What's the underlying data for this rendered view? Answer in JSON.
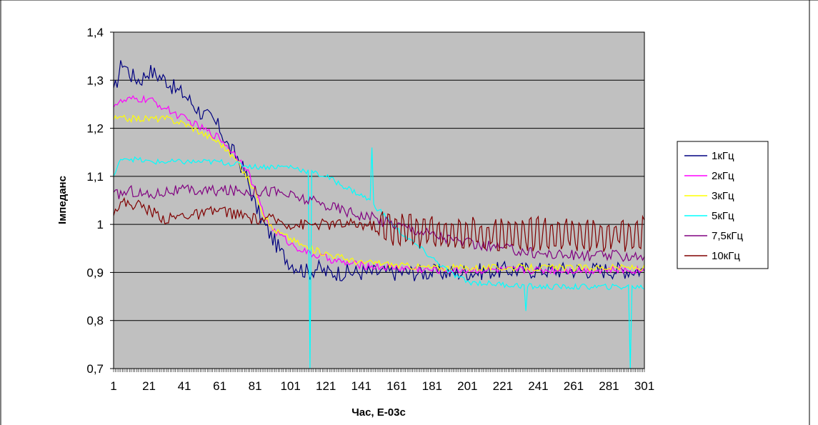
{
  "chart_data": {
    "type": "line",
    "xlabel": "Час, Е-03с",
    "ylabel": "Імпеданс",
    "xlim": [
      1,
      301
    ],
    "ylim": [
      0.7,
      1.4
    ],
    "y_ticks": [
      "0,7",
      "0,8",
      "0,9",
      "1",
      "1,1",
      "1,2",
      "1,3",
      "1,4"
    ],
    "x_ticks": [
      "1",
      "21",
      "41",
      "61",
      "81",
      "101",
      "121",
      "141",
      "161",
      "181",
      "201",
      "221",
      "241",
      "261",
      "281",
      "301"
    ],
    "grid": "horizontal",
    "plot_background": "#c0c0c0",
    "legend_position": "right",
    "series": [
      {
        "name": "1кГц",
        "color": "#000080",
        "points": [
          [
            1,
            1.27
          ],
          [
            3,
            1.3
          ],
          [
            6,
            1.34
          ],
          [
            11,
            1.31
          ],
          [
            16,
            1.3
          ],
          [
            21,
            1.32
          ],
          [
            26,
            1.31
          ],
          [
            31,
            1.3
          ],
          [
            36,
            1.28
          ],
          [
            41,
            1.27
          ],
          [
            46,
            1.25
          ],
          [
            51,
            1.23
          ],
          [
            56,
            1.22
          ],
          [
            61,
            1.2
          ],
          [
            66,
            1.16
          ],
          [
            71,
            1.14
          ],
          [
            76,
            1.1
          ],
          [
            81,
            1.04
          ],
          [
            86,
            1.0
          ],
          [
            91,
            0.97
          ],
          [
            96,
            0.94
          ],
          [
            101,
            0.92
          ],
          [
            106,
            0.91
          ],
          [
            111,
            0.9
          ],
          [
            116,
            0.91
          ],
          [
            121,
            0.9
          ],
          [
            131,
            0.9
          ],
          [
            141,
            0.9
          ],
          [
            151,
            0.9
          ],
          [
            161,
            0.9
          ],
          [
            171,
            0.9
          ],
          [
            181,
            0.9
          ],
          [
            191,
            0.9
          ],
          [
            201,
            0.9
          ],
          [
            221,
            0.905
          ],
          [
            241,
            0.905
          ],
          [
            261,
            0.905
          ],
          [
            281,
            0.905
          ],
          [
            301,
            0.905
          ]
        ],
        "noise": 0.018
      },
      {
        "name": "2кГц",
        "color": "#ff00ff",
        "points": [
          [
            1,
            1.25
          ],
          [
            11,
            1.26
          ],
          [
            21,
            1.26
          ],
          [
            31,
            1.24
          ],
          [
            41,
            1.22
          ],
          [
            51,
            1.2
          ],
          [
            61,
            1.18
          ],
          [
            71,
            1.14
          ],
          [
            76,
            1.12
          ],
          [
            81,
            1.07
          ],
          [
            86,
            1.02
          ],
          [
            91,
            0.99
          ],
          [
            101,
            0.96
          ],
          [
            111,
            0.94
          ],
          [
            121,
            0.93
          ],
          [
            131,
            0.92
          ],
          [
            141,
            0.915
          ],
          [
            151,
            0.912
          ],
          [
            161,
            0.91
          ],
          [
            181,
            0.905
          ],
          [
            201,
            0.905
          ],
          [
            221,
            0.905
          ],
          [
            241,
            0.905
          ],
          [
            261,
            0.905
          ],
          [
            281,
            0.905
          ],
          [
            301,
            0.905
          ]
        ],
        "noise": 0.008
      },
      {
        "name": "3кГц",
        "color": "#ffff00",
        "points": [
          [
            1,
            1.22
          ],
          [
            11,
            1.22
          ],
          [
            21,
            1.22
          ],
          [
            31,
            1.22
          ],
          [
            41,
            1.21
          ],
          [
            51,
            1.19
          ],
          [
            61,
            1.17
          ],
          [
            71,
            1.13
          ],
          [
            81,
            1.07
          ],
          [
            86,
            1.02
          ],
          [
            91,
            0.99
          ],
          [
            101,
            0.97
          ],
          [
            111,
            0.95
          ],
          [
            121,
            0.94
          ],
          [
            131,
            0.93
          ],
          [
            141,
            0.92
          ],
          [
            151,
            0.92
          ],
          [
            161,
            0.915
          ],
          [
            181,
            0.91
          ],
          [
            201,
            0.91
          ],
          [
            221,
            0.91
          ],
          [
            241,
            0.91
          ],
          [
            261,
            0.91
          ],
          [
            281,
            0.91
          ],
          [
            301,
            0.91
          ]
        ],
        "noise": 0.007
      },
      {
        "name": "5кГц",
        "color": "#00ffff",
        "points": [
          [
            1,
            1.1
          ],
          [
            6,
            1.14
          ],
          [
            21,
            1.13
          ],
          [
            41,
            1.13
          ],
          [
            61,
            1.13
          ],
          [
            81,
            1.12
          ],
          [
            101,
            1.12
          ],
          [
            111,
            1.11
          ],
          [
            121,
            1.1
          ],
          [
            131,
            1.08
          ],
          [
            141,
            1.06
          ],
          [
            146,
            1.05
          ],
          [
            151,
            1.03
          ],
          [
            161,
            0.99
          ],
          [
            171,
            0.96
          ],
          [
            181,
            0.93
          ],
          [
            191,
            0.9
          ],
          [
            201,
            0.88
          ],
          [
            221,
            0.875
          ],
          [
            241,
            0.87
          ],
          [
            261,
            0.87
          ],
          [
            281,
            0.87
          ],
          [
            301,
            0.87
          ]
        ],
        "spikes": [
          [
            112,
            0.7
          ],
          [
            147,
            1.16
          ],
          [
            234,
            0.82
          ],
          [
            293,
            0.7
          ]
        ],
        "noise": 0.006
      },
      {
        "name": "7,5кГц",
        "color": "#800080",
        "points": [
          [
            1,
            1.06
          ],
          [
            11,
            1.07
          ],
          [
            21,
            1.06
          ],
          [
            31,
            1.07
          ],
          [
            41,
            1.07
          ],
          [
            51,
            1.07
          ],
          [
            61,
            1.07
          ],
          [
            71,
            1.07
          ],
          [
            81,
            1.07
          ],
          [
            91,
            1.07
          ],
          [
            101,
            1.06
          ],
          [
            111,
            1.05
          ],
          [
            121,
            1.04
          ],
          [
            131,
            1.03
          ],
          [
            141,
            1.02
          ],
          [
            151,
            1.01
          ],
          [
            161,
            1.0
          ],
          [
            171,
            0.99
          ],
          [
            181,
            0.98
          ],
          [
            191,
            0.97
          ],
          [
            201,
            0.96
          ],
          [
            211,
            0.955
          ],
          [
            221,
            0.95
          ],
          [
            241,
            0.94
          ],
          [
            261,
            0.935
          ],
          [
            281,
            0.935
          ],
          [
            301,
            0.935
          ]
        ],
        "noise": 0.012
      },
      {
        "name": "10кГц",
        "color": "#800000",
        "points": [
          [
            1,
            1.03
          ],
          [
            6,
            1.045
          ],
          [
            16,
            1.04
          ],
          [
            21,
            1.03
          ],
          [
            31,
            1.01
          ],
          [
            41,
            1.02
          ],
          [
            51,
            1.02
          ],
          [
            61,
            1.03
          ],
          [
            71,
            1.02
          ],
          [
            81,
            1.01
          ],
          [
            91,
            1.01
          ],
          [
            101,
            1.0
          ],
          [
            111,
            1.0
          ],
          [
            121,
            1.0
          ],
          [
            141,
            1.0
          ],
          [
            161,
            0.99
          ],
          [
            201,
            0.98
          ],
          [
            241,
            0.98
          ],
          [
            281,
            0.98
          ],
          [
            301,
            0.98
          ]
        ],
        "noise": 0.012,
        "oscillation": 0.025
      }
    ]
  }
}
